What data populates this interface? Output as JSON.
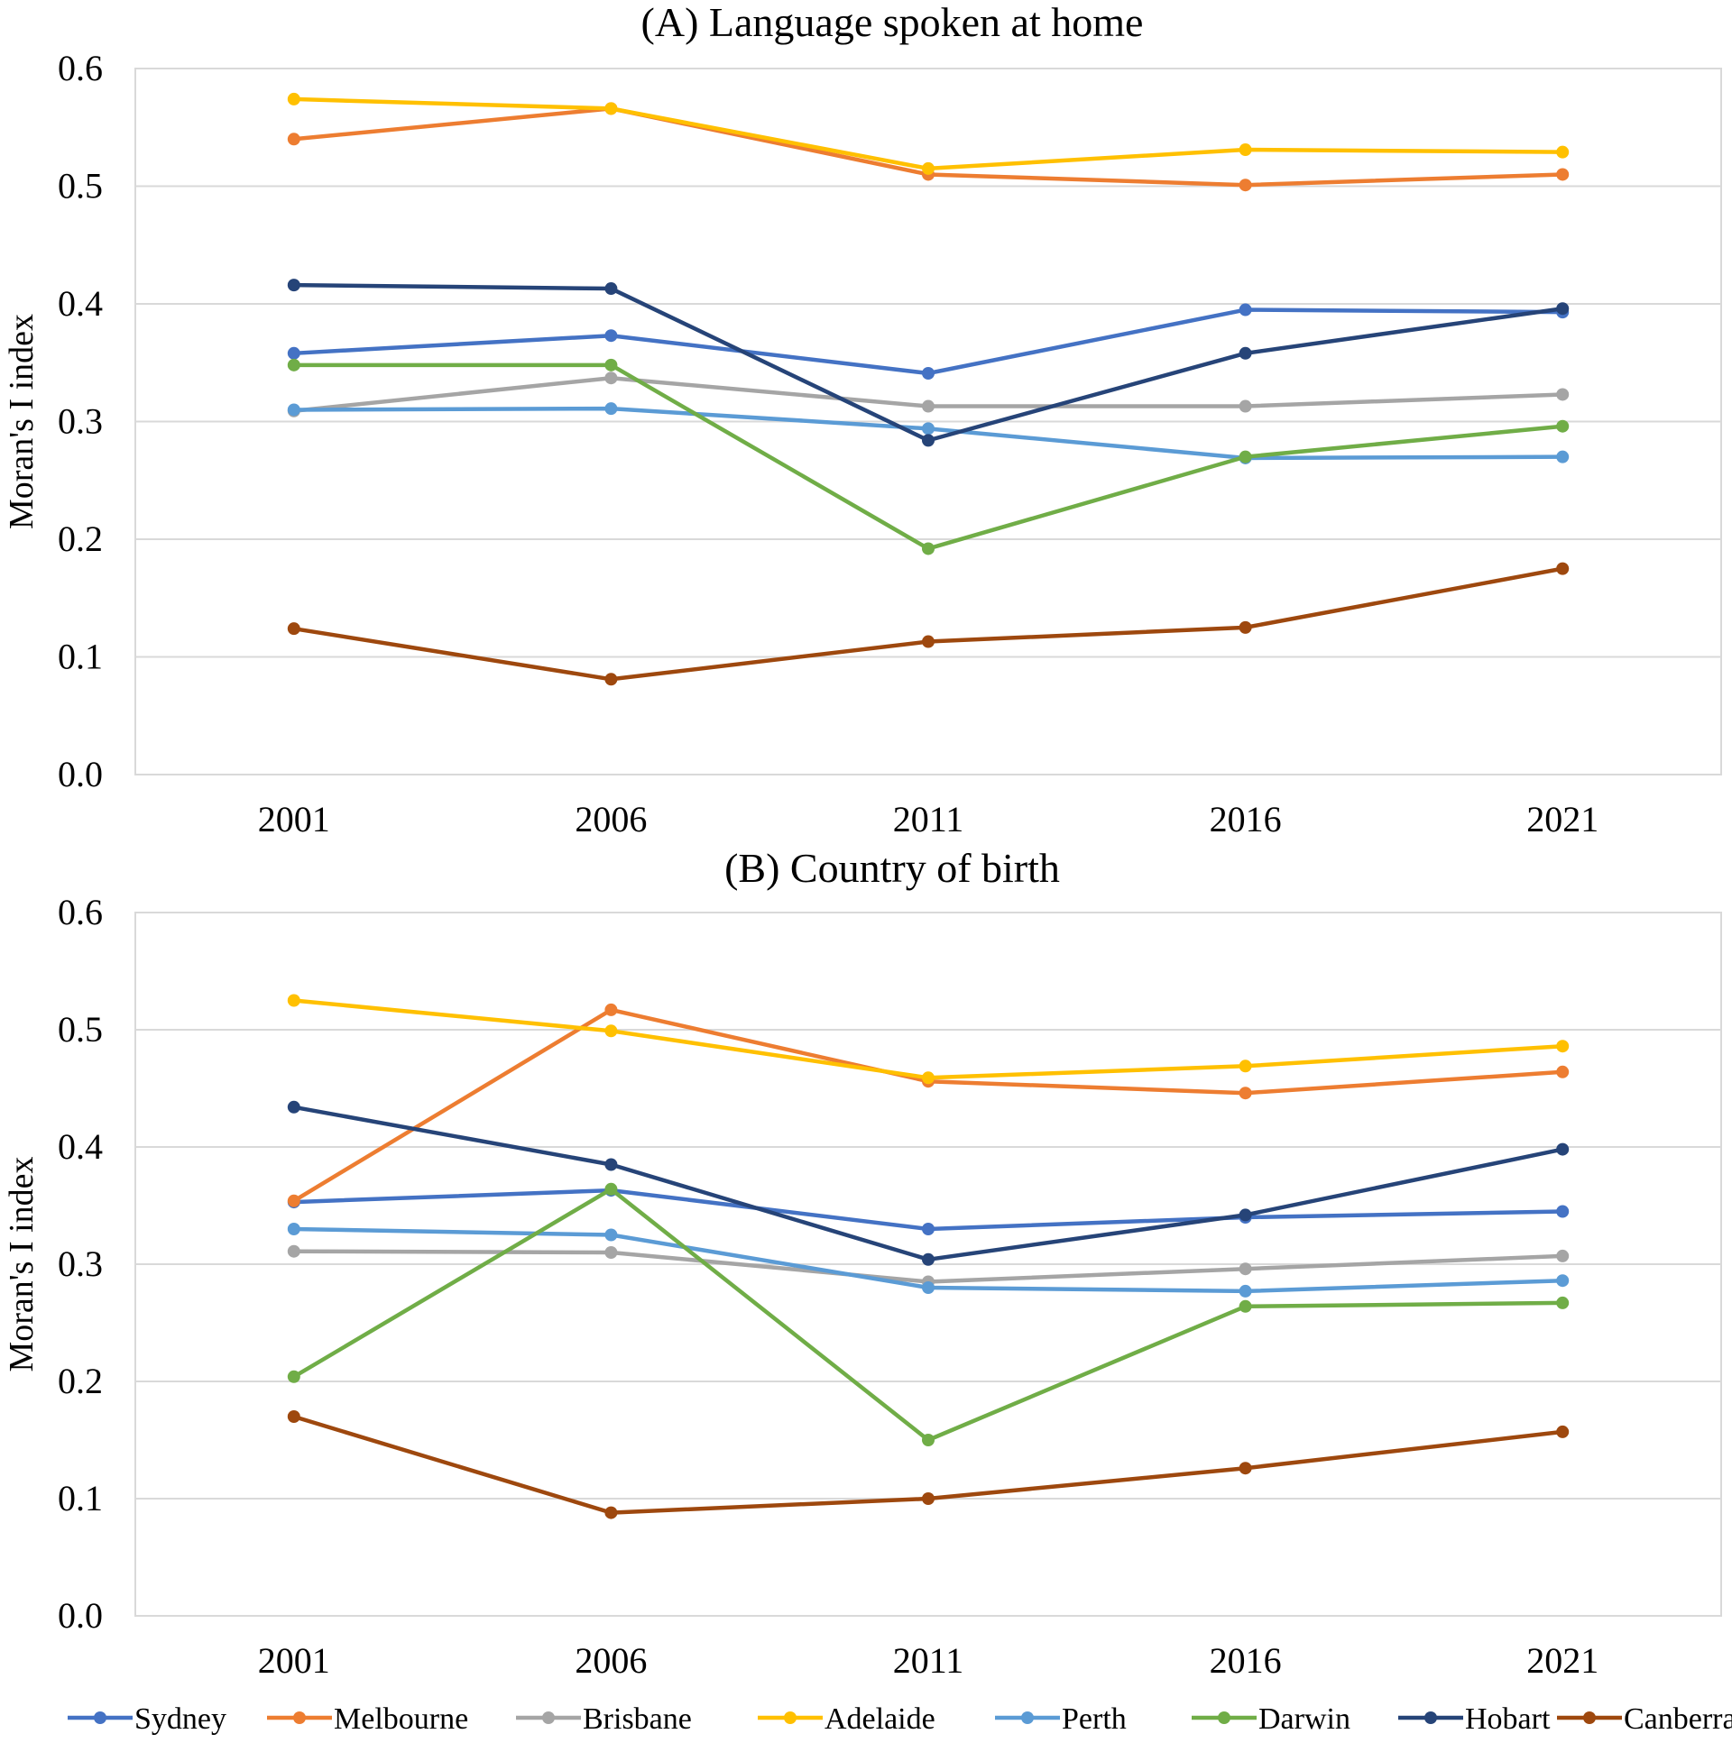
{
  "chart_data": [
    {
      "type": "line",
      "title": "(A) Language spoken at home",
      "xlabel": "",
      "ylabel": "Moran's I index",
      "categories": [
        "2001",
        "2006",
        "2011",
        "2016",
        "2021"
      ],
      "ylim": [
        0,
        0.6
      ],
      "yticks": [
        "0.0",
        "0.1",
        "0.2",
        "0.3",
        "0.4",
        "0.5",
        "0.6"
      ],
      "grid": true,
      "series": [
        {
          "name": "Sydney",
          "color": "#4472C4",
          "values": [
            0.358,
            0.373,
            0.341,
            0.395,
            0.393
          ]
        },
        {
          "name": "Melbourne",
          "color": "#ED7D31",
          "values": [
            0.54,
            0.566,
            0.51,
            0.501,
            0.51
          ]
        },
        {
          "name": "Brisbane",
          "color": "#A5A5A5",
          "values": [
            0.309,
            0.337,
            0.313,
            0.313,
            0.323
          ]
        },
        {
          "name": "Adelaide",
          "color": "#FFC000",
          "values": [
            0.574,
            0.566,
            0.515,
            0.531,
            0.529
          ]
        },
        {
          "name": "Perth",
          "color": "#5B9BD5",
          "values": [
            0.31,
            0.311,
            0.294,
            0.269,
            0.27
          ]
        },
        {
          "name": "Darwin",
          "color": "#70AD47",
          "values": [
            0.348,
            0.348,
            0.192,
            0.27,
            0.296
          ]
        },
        {
          "name": "Hobart",
          "color": "#264478",
          "values": [
            0.416,
            0.413,
            0.284,
            0.358,
            0.396
          ]
        },
        {
          "name": "Canberra",
          "color": "#9E480E",
          "values": [
            0.124,
            0.081,
            0.113,
            0.125,
            0.175
          ]
        }
      ]
    },
    {
      "type": "line",
      "title": "(B) Country of birth",
      "xlabel": "",
      "ylabel": "Moran's I index",
      "categories": [
        "2001",
        "2006",
        "2011",
        "2016",
        "2021"
      ],
      "ylim": [
        0,
        0.6
      ],
      "yticks": [
        "0.0",
        "0.1",
        "0.2",
        "0.3",
        "0.4",
        "0.5",
        "0.6"
      ],
      "grid": true,
      "series": [
        {
          "name": "Sydney",
          "color": "#4472C4",
          "values": [
            0.353,
            0.363,
            0.33,
            0.34,
            0.345
          ]
        },
        {
          "name": "Melbourne",
          "color": "#ED7D31",
          "values": [
            0.354,
            0.517,
            0.456,
            0.446,
            0.464
          ]
        },
        {
          "name": "Brisbane",
          "color": "#A5A5A5",
          "values": [
            0.311,
            0.31,
            0.285,
            0.296,
            0.307
          ]
        },
        {
          "name": "Adelaide",
          "color": "#FFC000",
          "values": [
            0.525,
            0.499,
            0.459,
            0.469,
            0.486
          ]
        },
        {
          "name": "Perth",
          "color": "#5B9BD5",
          "values": [
            0.33,
            0.325,
            0.28,
            0.277,
            0.286
          ]
        },
        {
          "name": "Darwin",
          "color": "#70AD47",
          "values": [
            0.204,
            0.364,
            0.15,
            0.264,
            0.267
          ]
        },
        {
          "name": "Hobart",
          "color": "#264478",
          "values": [
            0.434,
            0.385,
            0.304,
            0.342,
            0.398
          ]
        },
        {
          "name": "Canberra",
          "color": "#9E480E",
          "values": [
            0.17,
            0.088,
            0.1,
            0.126,
            0.157
          ]
        }
      ]
    }
  ],
  "legend": {
    "placement": "bottom",
    "items": [
      "Sydney",
      "Melbourne",
      "Brisbane",
      "Adelaide",
      "Perth",
      "Darwin",
      "Hobart",
      "Canberra"
    ]
  }
}
